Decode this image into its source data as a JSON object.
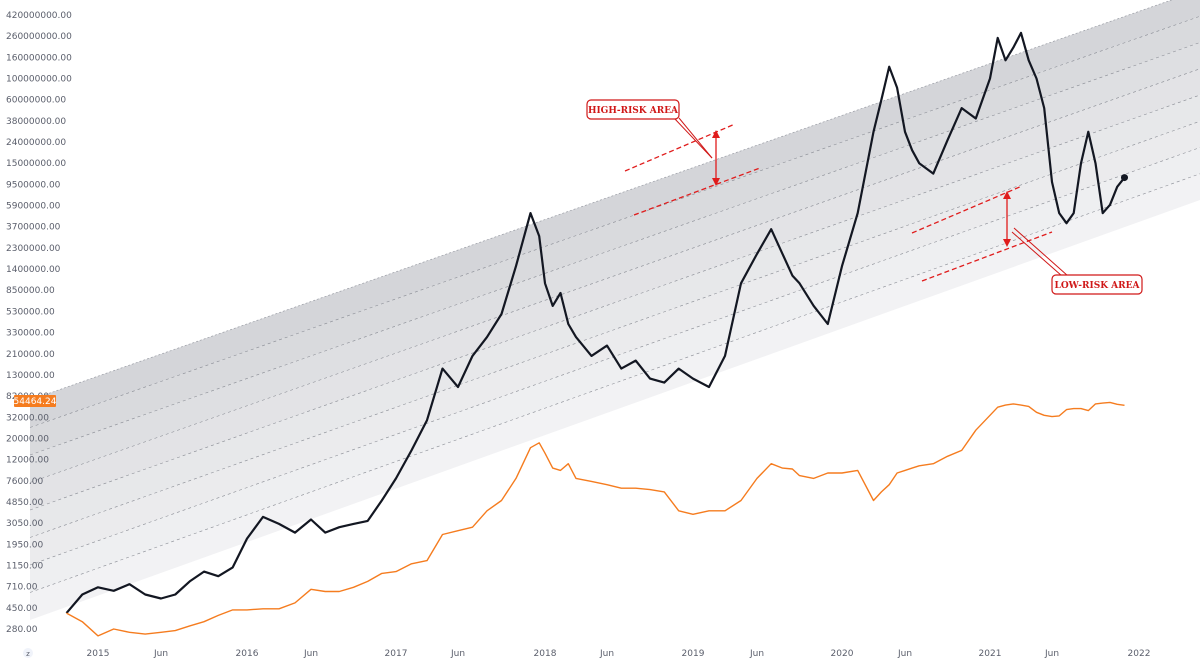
{
  "chart_data": {
    "type": "line",
    "title": "",
    "scale": "log",
    "grid": false,
    "ylim": [
      250,
      420000000
    ],
    "y_ticks": [
      "420000000.00",
      "260000000.00",
      "160000000.00",
      "100000000.00",
      "60000000.00",
      "38000000.00",
      "24000000.00",
      "15000000.00",
      "9500000.00",
      "5900000.00",
      "3700000.00",
      "2300000.00",
      "1400000.00",
      "850000.00",
      "530000.00",
      "330000.00",
      "210000.00",
      "130000.00",
      "82000.00",
      "32000.00",
      "20000.00",
      "12000.00",
      "7600.00",
      "4850.00",
      "3050.00",
      "1950.00",
      "1150.00",
      "710.00",
      "450.00",
      "280.00"
    ],
    "x_ticks": [
      "2015",
      "Jun",
      "2016",
      "Jun",
      "2017",
      "Jun",
      "2018",
      "Jun",
      "2019",
      "Jun",
      "2020",
      "Jun",
      "2021",
      "Jun",
      "2022"
    ],
    "current_price_label": "54464.24",
    "axis_badge": "z",
    "series": [
      {
        "color": "#131722",
        "x": [
          2014.8,
          2014.9,
          2015.0,
          2015.1,
          2015.2,
          2015.3,
          2015.4,
          2015.5,
          2015.6,
          2015.7,
          2015.8,
          2015.9,
          2016.0,
          2016.1,
          2016.2,
          2016.3,
          2016.4,
          2016.5,
          2016.6,
          2016.7,
          2016.8,
          2016.9,
          2017.0,
          2017.1,
          2017.2,
          2017.3,
          2017.4,
          2017.5,
          2017.6,
          2017.7,
          2017.8,
          2017.9,
          2017.96,
          2018.0,
          2018.05,
          2018.1,
          2018.15,
          2018.2,
          2018.3,
          2018.4,
          2018.5,
          2018.6,
          2018.7,
          2018.8,
          2018.9,
          2019.0,
          2019.1,
          2019.2,
          2019.3,
          2019.4,
          2019.5,
          2019.58,
          2019.65,
          2019.7,
          2019.8,
          2019.9,
          2020.0,
          2020.1,
          2020.2,
          2020.25,
          2020.3,
          2020.35,
          2020.4,
          2020.45,
          2020.5,
          2020.6,
          2020.7,
          2020.8,
          2020.9,
          2021.0,
          2021.05,
          2021.1,
          2021.15,
          2021.2,
          2021.25,
          2021.3,
          2021.35,
          2021.4,
          2021.45,
          2021.5,
          2021.55,
          2021.6,
          2021.65,
          2021.7,
          2021.75,
          2021.8,
          2021.85,
          2021.9
        ],
        "values": [
          400,
          600,
          700,
          650,
          750,
          600,
          550,
          600,
          800,
          1000,
          900,
          1100,
          2200,
          3500,
          3000,
          2500,
          3300,
          2500,
          2800,
          3000,
          3200,
          5000,
          8000,
          15000,
          30000,
          150000,
          100000,
          200000,
          300000,
          500000,
          1500000,
          5000000,
          3000000,
          1000000,
          600000,
          800000,
          400000,
          300000,
          200000,
          250000,
          150000,
          180000,
          120000,
          110000,
          150000,
          120000,
          100000,
          200000,
          1000000,
          2000000,
          3500000,
          2000000,
          1200000,
          1000000,
          600000,
          400000,
          1500000,
          5000000,
          30000000,
          60000000,
          130000000,
          80000000,
          30000000,
          20000000,
          15000000,
          12000000,
          25000000,
          50000000,
          40000000,
          100000000,
          250000000,
          150000000,
          200000000,
          280000000,
          150000000,
          100000000,
          50000000,
          10000000,
          5000000,
          4000000,
          5000000,
          15000000,
          30000000,
          15000000,
          5000000,
          6000000,
          9000000,
          11000000
        ]
      },
      {
        "color": "#f57c1f",
        "x": [
          2014.8,
          2014.9,
          2015.0,
          2015.1,
          2015.2,
          2015.3,
          2015.4,
          2015.5,
          2015.6,
          2015.7,
          2015.8,
          2015.9,
          2016.0,
          2016.1,
          2016.2,
          2016.3,
          2016.4,
          2016.5,
          2016.6,
          2016.7,
          2016.8,
          2016.9,
          2017.0,
          2017.1,
          2017.2,
          2017.3,
          2017.4,
          2017.5,
          2017.6,
          2017.7,
          2017.8,
          2017.9,
          2017.96,
          2018.0,
          2018.05,
          2018.1,
          2018.15,
          2018.2,
          2018.3,
          2018.4,
          2018.5,
          2018.6,
          2018.7,
          2018.8,
          2018.9,
          2019.0,
          2019.1,
          2019.2,
          2019.3,
          2019.4,
          2019.5,
          2019.58,
          2019.65,
          2019.7,
          2019.8,
          2019.9,
          2020.0,
          2020.1,
          2020.2,
          2020.25,
          2020.3,
          2020.35,
          2020.4,
          2020.45,
          2020.5,
          2020.6,
          2020.7,
          2020.8,
          2020.9,
          2021.0,
          2021.05,
          2021.1,
          2021.15,
          2021.2,
          2021.25,
          2021.3,
          2021.35,
          2021.4,
          2021.45,
          2021.5,
          2021.55,
          2021.6,
          2021.65,
          2021.7,
          2021.75,
          2021.8,
          2021.85,
          2021.9
        ],
        "values": [
          400,
          330,
          240,
          280,
          260,
          250,
          260,
          270,
          300,
          330,
          380,
          430,
          430,
          440,
          440,
          500,
          670,
          640,
          640,
          700,
          800,
          960,
          1000,
          1200,
          1300,
          2400,
          2600,
          2800,
          4000,
          5000,
          8000,
          16000,
          18000,
          14000,
          10000,
          9500,
          11000,
          8000,
          7500,
          7000,
          6500,
          6500,
          6300,
          6000,
          4000,
          3700,
          4000,
          4000,
          5000,
          8000,
          11000,
          10000,
          9800,
          8500,
          8000,
          9000,
          9000,
          9500,
          5000,
          6000,
          7000,
          9000,
          9500,
          10000,
          10500,
          11000,
          13000,
          15000,
          24000,
          35000,
          50000,
          55000,
          58000,
          55000,
          52000,
          40000,
          35000,
          33000,
          34000,
          45000,
          47000,
          47000,
          43000,
          58000,
          60000,
          62000,
          57000,
          54464
        ]
      }
    ],
    "annotations": [
      {
        "label": "HIGH-RISK AREA"
      },
      {
        "label": "LOW-RISK AREA"
      }
    ]
  }
}
